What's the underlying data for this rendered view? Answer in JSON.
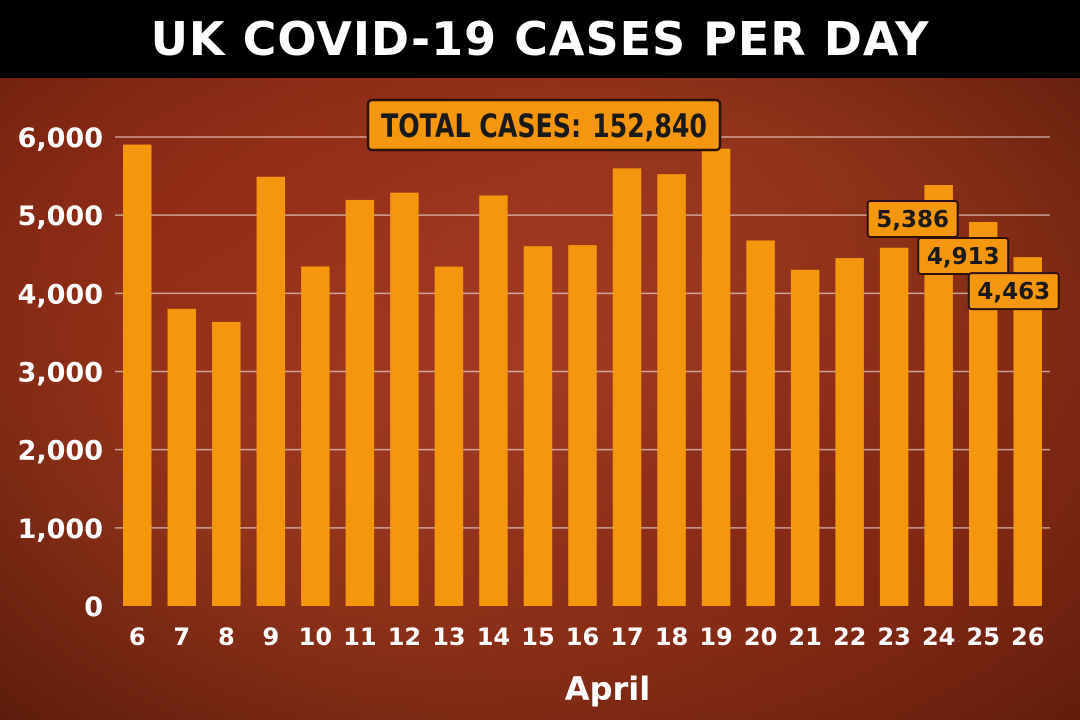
{
  "header": {
    "title": "UK COVID-19 CASES PER DAY"
  },
  "colors": {
    "bar": "#f5960f",
    "callout": "#f5960f",
    "grid": "#ffffff"
  },
  "chart_data": {
    "type": "bar",
    "title": "UK COVID-19 CASES PER DAY",
    "xlabel": "April",
    "ylabel": "",
    "categories": [
      "6",
      "7",
      "8",
      "9",
      "10",
      "11",
      "12",
      "13",
      "14",
      "15",
      "16",
      "17",
      "18",
      "19",
      "20",
      "21",
      "22",
      "23",
      "24",
      "25",
      "26"
    ],
    "values": [
      5903,
      3802,
      3634,
      5491,
      4344,
      5195,
      5288,
      4342,
      5252,
      4603,
      4617,
      5599,
      5525,
      5850,
      4676,
      4301,
      4451,
      4583,
      5386,
      4913,
      4463
    ],
    "ylim": [
      0,
      6000
    ],
    "yticks": [
      0,
      1000,
      2000,
      3000,
      4000,
      5000,
      6000
    ],
    "ytick_labels": [
      "0",
      "1,000",
      "2,000",
      "3,000",
      "4,000",
      "5,000",
      "6,000"
    ],
    "grid": true,
    "annotations": [
      {
        "category": "24",
        "text": "5,386"
      },
      {
        "category": "25",
        "text": "4,913"
      },
      {
        "category": "26",
        "text": "4,463"
      }
    ],
    "total_label": "TOTAL CASES:",
    "total_value": "152,840"
  }
}
